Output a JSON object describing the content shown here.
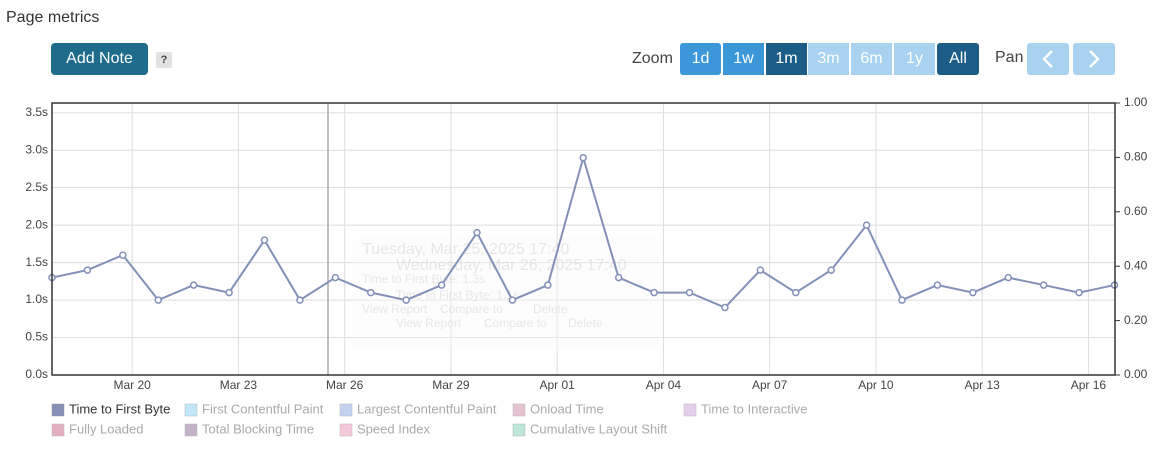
{
  "header": {
    "title": "Page metrics",
    "add_note": "Add Note",
    "help": "?",
    "zoom_label": "Zoom",
    "zoom_buttons": [
      "1d",
      "1w",
      "1m",
      "3m",
      "6m",
      "1y",
      "All"
    ],
    "pan_label": "Pan"
  },
  "tooltips": [
    {
      "date": "Tuesday, Mar 25, 2025 17:40",
      "metric": "Time to First Byte: 1.3s",
      "links": [
        "View Report",
        "Compare to",
        "Delete"
      ]
    },
    {
      "date": "Wednesday, Mar 26, 2025 17:40",
      "metric": "Time to First Byte: 1.1s",
      "links": [
        "View Report",
        "Compare to",
        "Delete"
      ]
    }
  ],
  "chart_data": {
    "type": "line",
    "x": [
      "2025-03-17T17:40",
      "2025-03-18T17:40",
      "2025-03-19T17:40",
      "2025-03-20T17:40",
      "2025-03-21T17:40",
      "2025-03-22T17:40",
      "2025-03-23T17:40",
      "2025-03-24T17:40",
      "2025-03-25T17:40",
      "2025-03-26T17:40",
      "2025-03-27T17:40",
      "2025-03-28T17:40",
      "2025-03-29T17:40",
      "2025-03-30T17:40",
      "2025-03-31T17:40",
      "2025-04-01T17:40",
      "2025-04-02T17:40",
      "2025-04-03T17:40",
      "2025-04-04T17:40",
      "2025-04-05T17:40",
      "2025-04-06T17:40",
      "2025-04-07T17:40",
      "2025-04-08T17:40",
      "2025-04-09T17:40",
      "2025-04-10T17:40",
      "2025-04-11T17:40",
      "2025-04-12T17:40",
      "2025-04-13T17:40",
      "2025-04-14T17:40",
      "2025-04-15T17:40",
      "2025-04-16T17:40"
    ],
    "series": [
      {
        "name": "Time to First Byte",
        "color": "#8490b8",
        "values": [
          1.3,
          1.4,
          1.6,
          1.0,
          1.2,
          1.1,
          1.8,
          1.0,
          1.3,
          1.1,
          1.0,
          1.2,
          1.9,
          1.0,
          1.2,
          2.9,
          1.3,
          1.1,
          1.1,
          0.9,
          1.4,
          1.1,
          1.4,
          2.0,
          1.0,
          1.2,
          1.1,
          1.3,
          1.2,
          1.1,
          1.2
        ]
      }
    ],
    "hidden_series": [
      {
        "name": "First Contentful Paint",
        "color": "#a6def5"
      },
      {
        "name": "Largest Contentful Paint",
        "color": "#a9bfea"
      },
      {
        "name": "Onload Time",
        "color": "#d9a9bd"
      },
      {
        "name": "Time to Interactive",
        "color": "#dcbbe8"
      },
      {
        "name": "Fully Loaded",
        "color": "#d98ea8"
      },
      {
        "name": "Total Blocking Time",
        "color": "#ab92b2"
      },
      {
        "name": "Speed Index",
        "color": "#f3b3cb"
      },
      {
        "name": "Cumulative Layout Shift",
        "color": "#a2ddc9"
      }
    ],
    "xlim": [
      "2025-03-17T17:40",
      "2025-04-16T18:00"
    ],
    "xticks": [
      {
        "value": "2025-03-20T00:00",
        "label": "Mar 20"
      },
      {
        "value": "2025-03-23T00:00",
        "label": "Mar 23"
      },
      {
        "value": "2025-03-26T00:00",
        "label": "Mar 26"
      },
      {
        "value": "2025-03-29T00:00",
        "label": "Mar 29"
      },
      {
        "value": "2025-04-01T00:00",
        "label": "Apr 01"
      },
      {
        "value": "2025-04-04T00:00",
        "label": "Apr 04"
      },
      {
        "value": "2025-04-07T00:00",
        "label": "Apr 07"
      },
      {
        "value": "2025-04-10T00:00",
        "label": "Apr 10"
      },
      {
        "value": "2025-04-13T00:00",
        "label": "Apr 13"
      },
      {
        "value": "2025-04-16T00:00",
        "label": "Apr 16"
      }
    ],
    "ylim": [
      0,
      3.63
    ],
    "yticks": [
      {
        "value": 0,
        "label": "0.0s"
      },
      {
        "value": 0.5,
        "label": "0.5s"
      },
      {
        "value": 1,
        "label": "1.0s"
      },
      {
        "value": 1.5,
        "label": "1.5s"
      },
      {
        "value": 2,
        "label": "2.0s"
      },
      {
        "value": 2.5,
        "label": "2.5s"
      },
      {
        "value": 3,
        "label": "3.0s"
      },
      {
        "value": 3.5,
        "label": "3.5s"
      }
    ],
    "y2lim": [
      0,
      1
    ],
    "y2ticks": [
      {
        "value": 0,
        "label": "0.00"
      },
      {
        "value": 0.2,
        "label": "0.20"
      },
      {
        "value": 0.4,
        "label": "0.40"
      },
      {
        "value": 0.6,
        "label": "0.60"
      },
      {
        "value": 0.8,
        "label": "0.80"
      },
      {
        "value": 1,
        "label": "1.00"
      }
    ],
    "grid": true
  }
}
